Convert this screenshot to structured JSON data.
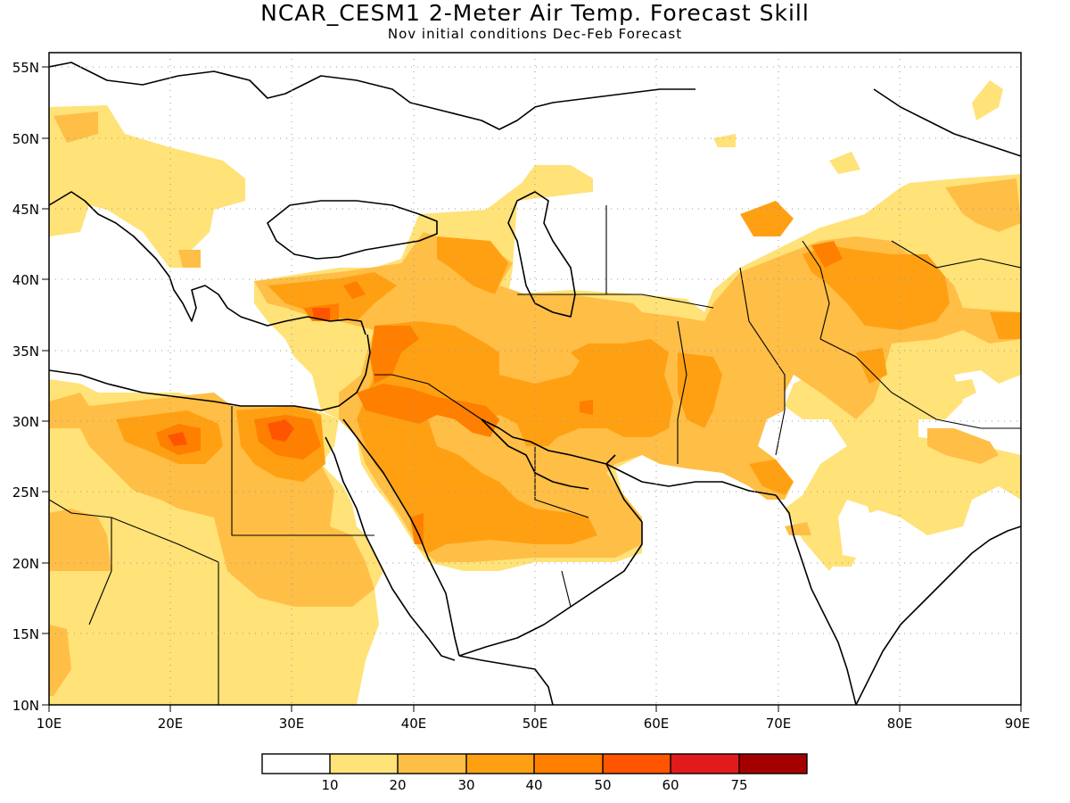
{
  "title": "NCAR_CESM1 2-Meter Air Temp. Forecast Skill",
  "subtitle": "Nov initial conditions  Dec-Feb Forecast",
  "lat_ticks": [
    "55N",
    "50N",
    "45N",
    "40N",
    "35N",
    "30N",
    "25N",
    "20N",
    "15N",
    "10N"
  ],
  "lon_ticks": [
    "10E",
    "20E",
    "30E",
    "40E",
    "50E",
    "60E",
    "70E",
    "80E",
    "90E"
  ],
  "legend": {
    "labels": [
      "10",
      "20",
      "30",
      "40",
      "50",
      "60",
      "75"
    ],
    "colors": [
      "#ffffff",
      "#ffe278",
      "#ffbe46",
      "#ffa013",
      "#ff7f00",
      "#ff5500",
      "#e31a1c",
      "#a50000"
    ]
  },
  "map_extent": {
    "lon": [
      10,
      90
    ],
    "lat": [
      10,
      56
    ]
  }
}
